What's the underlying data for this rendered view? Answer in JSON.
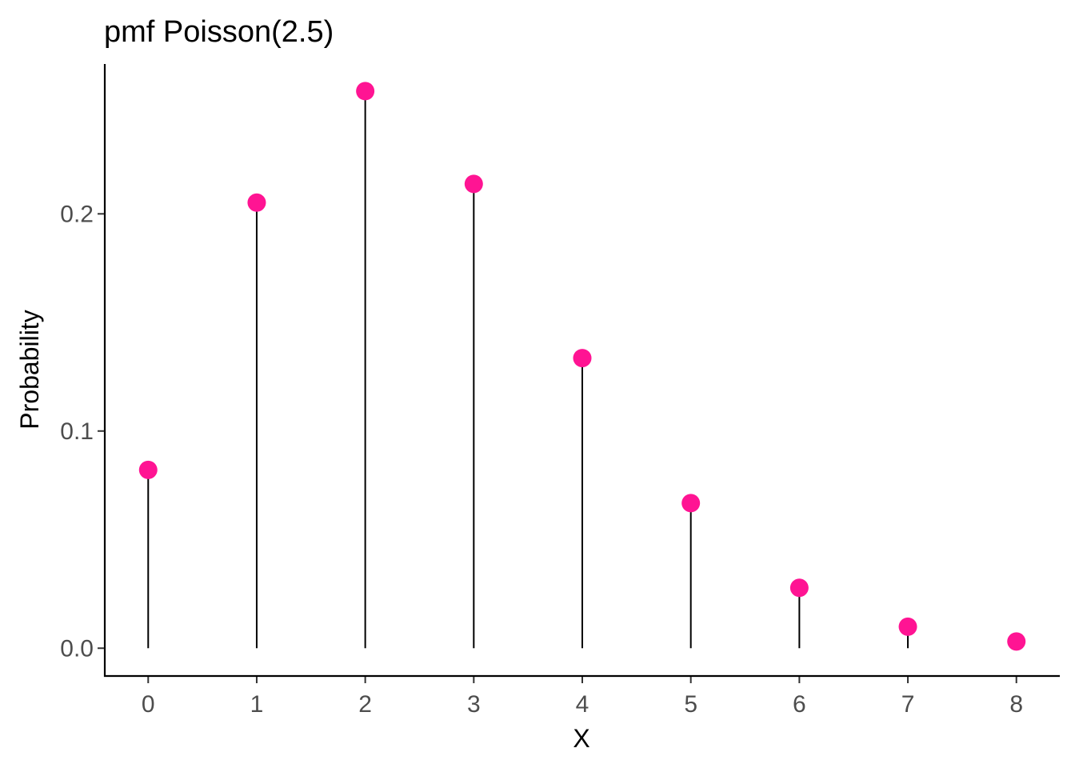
{
  "chart_data": {
    "type": "scatter",
    "title": "pmf Poisson(2.5)",
    "xlabel": "X",
    "ylabel": "Probability",
    "x": [
      0,
      1,
      2,
      3,
      4,
      5,
      6,
      7,
      8
    ],
    "y": [
      0.0821,
      0.2052,
      0.2565,
      0.2138,
      0.1336,
      0.0668,
      0.0278,
      0.0099,
      0.0031
    ],
    "xticks": [
      "0",
      "1",
      "2",
      "3",
      "4",
      "5",
      "6",
      "7",
      "8"
    ],
    "yticks": [
      "0.0",
      "0.1",
      "0.2"
    ],
    "xlim": [
      -0.4,
      8.4
    ],
    "ylim": [
      -0.0128,
      0.269
    ],
    "grid": false,
    "legend": "none",
    "point_color": "#ff1493",
    "stem_color": "#000000"
  }
}
